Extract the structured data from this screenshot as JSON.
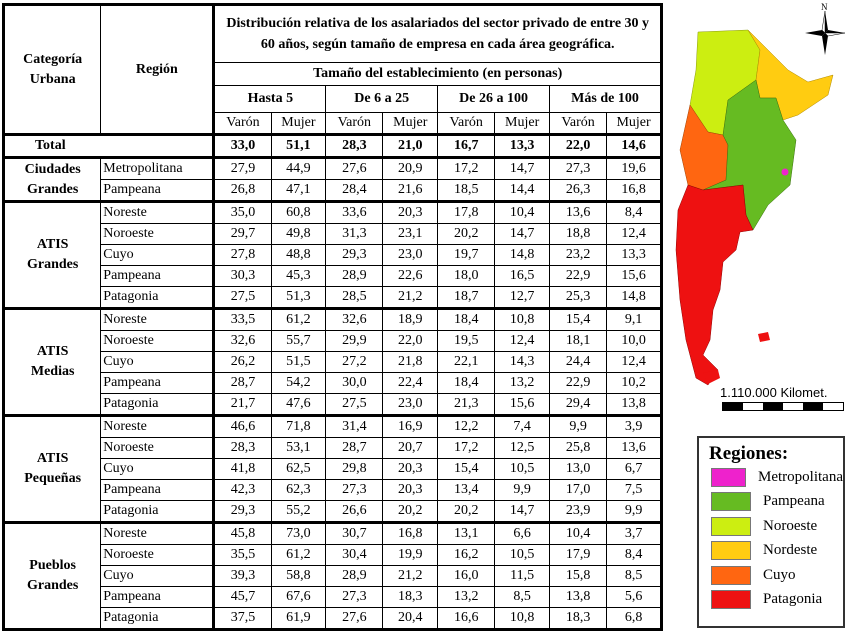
{
  "table": {
    "col_categoria": "Categoría Urbana",
    "col_region": "Región",
    "title": "Distribución relativa de los asalariados del sector privado de entre 30 y 60 años,  según tamaño de empresa en cada área geográfica.",
    "subtitle": "Tamaño del establecimiento (en personas)",
    "size_groups": [
      "Hasta 5",
      "De 6 a 25",
      "De 26 a 100",
      "Más de 100"
    ],
    "sex_labels": [
      "Varón",
      "Mujer",
      "Varón",
      "Mujer",
      "Varón",
      "Mujer",
      "Varón",
      "Mujer"
    ],
    "total": {
      "label": "Total",
      "values": [
        "33,0",
        "51,1",
        "28,3",
        "21,0",
        "16,7",
        "13,3",
        "22,0",
        "14,6"
      ]
    },
    "groups": [
      {
        "label_line1": "Ciudades",
        "label_line2": "Grandes",
        "rows": [
          {
            "region": "Metropolitana",
            "values": [
              "27,9",
              "44,9",
              "27,6",
              "20,9",
              "17,2",
              "14,7",
              "27,3",
              "19,6"
            ]
          },
          {
            "region": "Pampeana",
            "values": [
              "26,8",
              "47,1",
              "28,4",
              "21,6",
              "18,5",
              "14,4",
              "26,3",
              "16,8"
            ]
          }
        ]
      },
      {
        "label_line1": "ATIS",
        "label_line2": "Grandes",
        "rows": [
          {
            "region": "Noreste",
            "values": [
              "35,0",
              "60,8",
              "33,6",
              "20,3",
              "17,8",
              "10,4",
              "13,6",
              "8,4"
            ]
          },
          {
            "region": "Noroeste",
            "values": [
              "29,7",
              "49,8",
              "31,3",
              "23,1",
              "20,2",
              "14,7",
              "18,8",
              "12,4"
            ]
          },
          {
            "region": "Cuyo",
            "values": [
              "27,8",
              "48,8",
              "29,3",
              "23,0",
              "19,7",
              "14,8",
              "23,2",
              "13,3"
            ]
          },
          {
            "region": "Pampeana",
            "values": [
              "30,3",
              "45,3",
              "28,9",
              "22,6",
              "18,0",
              "16,5",
              "22,9",
              "15,6"
            ]
          },
          {
            "region": "Patagonia",
            "values": [
              "27,5",
              "51,3",
              "28,5",
              "21,2",
              "18,7",
              "12,7",
              "25,3",
              "14,8"
            ]
          }
        ]
      },
      {
        "label_line1": "ATIS",
        "label_line2": "Medias",
        "rows": [
          {
            "region": "Noreste",
            "values": [
              "33,5",
              "61,2",
              "32,6",
              "18,9",
              "18,4",
              "10,8",
              "15,4",
              "9,1"
            ]
          },
          {
            "region": "Noroeste",
            "values": [
              "32,6",
              "55,7",
              "29,9",
              "22,0",
              "19,5",
              "12,4",
              "18,1",
              "10,0"
            ]
          },
          {
            "region": "Cuyo",
            "values": [
              "26,2",
              "51,5",
              "27,2",
              "21,8",
              "22,1",
              "14,3",
              "24,4",
              "12,4"
            ]
          },
          {
            "region": "Pampeana",
            "values": [
              "28,7",
              "54,2",
              "30,0",
              "22,4",
              "18,4",
              "13,2",
              "22,9",
              "10,2"
            ]
          },
          {
            "region": "Patagonia",
            "values": [
              "21,7",
              "47,6",
              "27,5",
              "23,0",
              "21,3",
              "15,6",
              "29,4",
              "13,8"
            ]
          }
        ]
      },
      {
        "label_line1": "ATIS",
        "label_line2": "Pequeñas",
        "rows": [
          {
            "region": "Noreste",
            "values": [
              "46,6",
              "71,8",
              "31,4",
              "16,9",
              "12,2",
              "7,4",
              "9,9",
              "3,9"
            ]
          },
          {
            "region": "Noroeste",
            "values": [
              "28,3",
              "53,1",
              "28,7",
              "20,7",
              "17,2",
              "12,5",
              "25,8",
              "13,6"
            ]
          },
          {
            "region": "Cuyo",
            "values": [
              "41,8",
              "62,5",
              "29,8",
              "20,3",
              "15,4",
              "10,5",
              "13,0",
              "6,7"
            ]
          },
          {
            "region": "Pampeana",
            "values": [
              "42,3",
              "62,3",
              "27,3",
              "20,3",
              "13,4",
              "9,9",
              "17,0",
              "7,5"
            ]
          },
          {
            "region": "Patagonia",
            "values": [
              "29,3",
              "55,2",
              "26,6",
              "20,2",
              "20,2",
              "14,7",
              "23,9",
              "9,9"
            ]
          }
        ]
      },
      {
        "label_line1": "Pueblos",
        "label_line2": "Grandes",
        "rows": [
          {
            "region": "Noreste",
            "values": [
              "45,8",
              "73,0",
              "30,7",
              "16,8",
              "13,1",
              "6,6",
              "10,4",
              "3,7"
            ]
          },
          {
            "region": "Noroeste",
            "values": [
              "35,5",
              "61,2",
              "30,4",
              "19,9",
              "16,2",
              "10,5",
              "17,9",
              "8,4"
            ]
          },
          {
            "region": "Cuyo",
            "values": [
              "39,3",
              "58,8",
              "28,9",
              "21,2",
              "16,0",
              "11,5",
              "15,8",
              "8,5"
            ]
          },
          {
            "region": "Pampeana",
            "values": [
              "45,7",
              "67,6",
              "27,3",
              "18,3",
              "13,2",
              "8,5",
              "13,8",
              "5,6"
            ]
          },
          {
            "region": "Patagonia",
            "values": [
              "37,5",
              "61,9",
              "27,6",
              "20,4",
              "16,6",
              "10,8",
              "18,3",
              "6,8"
            ]
          }
        ]
      }
    ]
  },
  "map": {
    "north_label": "N",
    "scale_label": "1.110.000 Kilomet.",
    "legend_title": "Regiones:",
    "legend": [
      {
        "label": "Metropolitana",
        "color": "#ee22cc"
      },
      {
        "label": "Pampeana",
        "color": "#66bb22"
      },
      {
        "label": "Noroeste",
        "color": "#ccee11"
      },
      {
        "label": "Nordeste",
        "color": "#ffcc11"
      },
      {
        "label": "Cuyo",
        "color": "#ff6611"
      },
      {
        "label": "Patagonia",
        "color": "#ee1111"
      }
    ]
  }
}
